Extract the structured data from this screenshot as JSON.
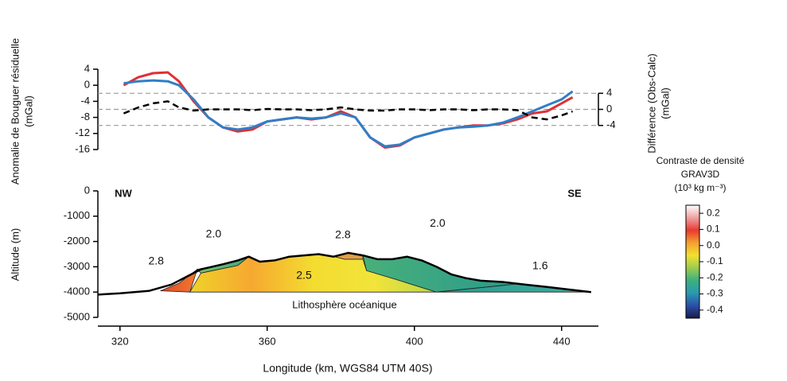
{
  "chart_data": [
    {
      "type": "line",
      "ylabel": [
        "Anomalie de Bouguer résiduelle",
        "(mGal)"
      ],
      "y2label": [
        "Différence (Obs-Calc)",
        "(mGal)"
      ],
      "xlim": [
        314,
        450
      ],
      "ylim": [
        -16,
        4
      ],
      "yticks": [
        4,
        0,
        -4,
        -8,
        -12,
        -16
      ],
      "y2lim": [
        -10,
        10
      ],
      "y2ticks": [
        4,
        0,
        -4
      ],
      "grid": true,
      "x": [
        321,
        325,
        329,
        333,
        336,
        340,
        344,
        348,
        352,
        356,
        360,
        364,
        368,
        372,
        376,
        380,
        384,
        388,
        392,
        396,
        400,
        404,
        408,
        412,
        416,
        420,
        424,
        428,
        432,
        436,
        440,
        443
      ],
      "series": [
        {
          "color": "#e03034",
          "values": [
            0,
            2,
            3,
            3.2,
            1,
            -4,
            -8,
            -10.5,
            -11.5,
            -11,
            -9,
            -8.5,
            -8,
            -8.5,
            -8,
            -6.5,
            -8,
            -13,
            -15.5,
            -15,
            -13,
            -12,
            -11,
            -10.5,
            -10,
            -10,
            -9.5,
            -8.5,
            -7,
            -6.5,
            -4.5,
            -3
          ]
        },
        {
          "color": "#2f7fc8",
          "values": [
            0.5,
            1,
            1.2,
            1,
            0,
            -3.5,
            -8,
            -10.5,
            -11,
            -10.5,
            -9,
            -8.5,
            -8,
            -8.3,
            -8,
            -7,
            -8,
            -13,
            -15.2,
            -14.8,
            -13,
            -12,
            -11,
            -10.5,
            -10.3,
            -10,
            -9.3,
            -8,
            -6.5,
            -5,
            -3.5,
            -1.5
          ]
        },
        {
          "color": "#000000",
          "dash": true,
          "axis": "y2",
          "values": [
            -1,
            0.5,
            1.5,
            2,
            0.5,
            -0.3,
            0,
            0,
            0,
            -0.2,
            0.1,
            0,
            0,
            -0.2,
            0,
            0.5,
            0,
            -0.3,
            -0.3,
            0,
            0,
            -0.2,
            0,
            0,
            -0.2,
            0,
            0,
            -0.2,
            -2,
            -2.5,
            -1.5,
            -0.5
          ]
        }
      ]
    },
    {
      "type": "section",
      "xlabel": "Longitude (km, WGS84 UTM 40S)",
      "ylabel": "Altitude (m)",
      "xlim": [
        314,
        450
      ],
      "xticks": [
        320,
        360,
        400,
        440
      ],
      "ylim": [
        -5000,
        0
      ],
      "yticks": [
        0,
        -1000,
        -2000,
        -3000,
        -4000,
        -5000
      ],
      "annotations": [
        "NW",
        "SE",
        "Lithosphère océanique"
      ],
      "topography": {
        "color": "#000000",
        "x": [
          314,
          320,
          328,
          334,
          338,
          342,
          348,
          352,
          355,
          358,
          362,
          366,
          370,
          374,
          378,
          382,
          386,
          390,
          394,
          398,
          402,
          406,
          410,
          414,
          418,
          424,
          430,
          436,
          442,
          448
        ],
        "values": [
          -4100,
          -4050,
          -3950,
          -3700,
          -3400,
          -3100,
          -2900,
          -2750,
          -2600,
          -2800,
          -2750,
          -2600,
          -2550,
          -2500,
          -2600,
          -2450,
          -2550,
          -2700,
          -2700,
          -2600,
          -2750,
          -3000,
          -3300,
          -3450,
          -3550,
          -3600,
          -3700,
          -3800,
          -3900,
          -4000
        ]
      },
      "bodies": [
        {
          "label": "2.8",
          "colors": [
            "#e04a2a",
            "#f07a30"
          ],
          "x": [
            331,
            336,
            341,
            339
          ],
          "values": [
            -3950,
            -3650,
            -3100,
            -4000
          ]
        },
        {
          "label": "2.0",
          "colors": [
            "#7cc060",
            "#3aa88a"
          ],
          "x": [
            341,
            348,
            355,
            352,
            342
          ],
          "values": [
            -3100,
            -2900,
            -2600,
            -2950,
            -3250
          ]
        },
        {
          "label": "2.5",
          "colors": [
            "#f0d22a",
            "#f6a830",
            "#f4dc30",
            "#f2e43a",
            "#b8d64a"
          ],
          "x": [
            339,
            342,
            352,
            355,
            358,
            362,
            366,
            370,
            374,
            377,
            381,
            386,
            387,
            395,
            406
          ],
          "values": [
            -4000,
            -3250,
            -2950,
            -2600,
            -2800,
            -2750,
            -2600,
            -2550,
            -2500,
            -2550,
            -2700,
            -2700,
            -3150,
            -3500,
            -4000
          ]
        },
        {
          "label": "2.8",
          "colors": [
            "#e89a40",
            "#e0a048"
          ],
          "x": [
            374,
            378,
            382,
            386,
            386,
            381,
            377
          ],
          "values": [
            -2500,
            -2600,
            -2450,
            -2550,
            -2700,
            -2700,
            -2550
          ]
        },
        {
          "label": "2.0",
          "colors": [
            "#48b07a",
            "#2a9a8c"
          ],
          "x": [
            386,
            390,
            394,
            398,
            402,
            406,
            410,
            414,
            418,
            424,
            428,
            406,
            395,
            387
          ],
          "values": [
            -2550,
            -2700,
            -2700,
            -2600,
            -2750,
            -3000,
            -3300,
            -3450,
            -3550,
            -3600,
            -3680,
            -4000,
            -3500,
            -3150
          ]
        },
        {
          "label": "1.6",
          "colors": [
            "#2a9a8c",
            "#40aca0"
          ],
          "x": [
            406,
            428,
            436,
            442,
            448
          ],
          "values": [
            -4000,
            -3680,
            -3800,
            -3900,
            -4000
          ]
        }
      ],
      "colorbar": {
        "title": [
          "Contraste de densité",
          "GRAV3D",
          "(10³ kg m⁻³)"
        ],
        "lim": [
          -0.45,
          0.25
        ],
        "ticks": [
          0.2,
          0.1,
          {
            "value": 0,
            "label": "0.0"
          },
          -0.1,
          -0.2,
          -0.3,
          -0.4
        ],
        "colors": [
          "#1a1a4a",
          "#2a4fa8",
          "#2a9ab0",
          "#3cb080",
          "#9ccc50",
          "#f2e030",
          "#f4a030",
          "#e83a30",
          "#f0a0a0",
          "#ffffff"
        ]
      }
    }
  ]
}
